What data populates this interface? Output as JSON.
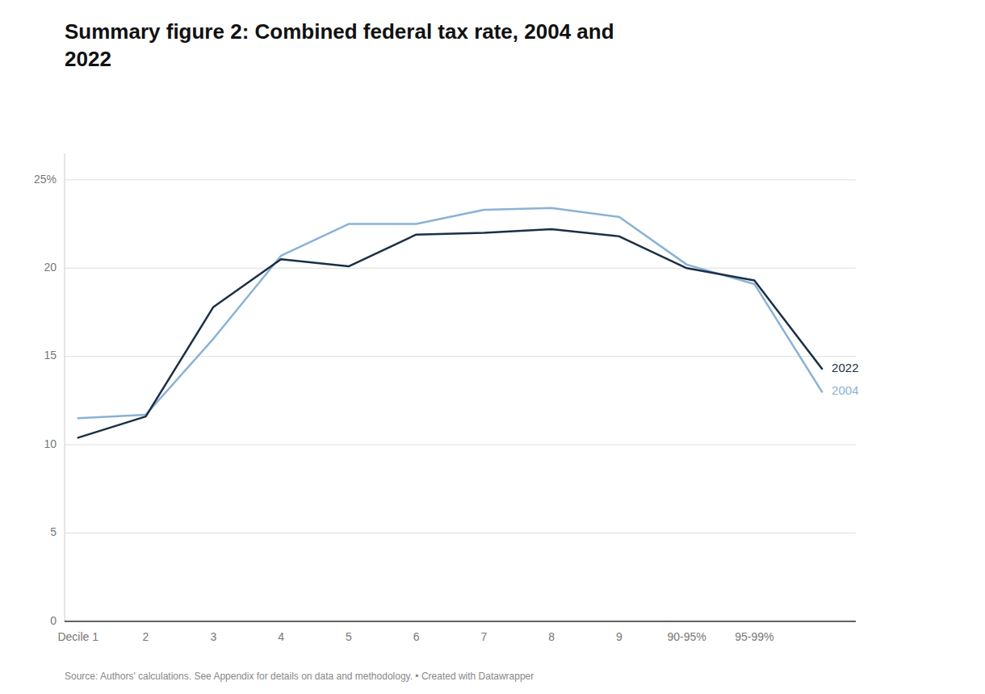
{
  "chart_data": {
    "type": "line",
    "title": "Summary figure 2: Combined federal tax rate, 2004 and\n2022",
    "categories": [
      "Decile 1",
      "2",
      "3",
      "4",
      "5",
      "6",
      "7",
      "8",
      "9",
      "90-95%",
      "95-99%",
      null
    ],
    "series": [
      {
        "name": "2004",
        "color": "#8ab2d5",
        "values": [
          11.5,
          11.7,
          16.0,
          20.7,
          22.5,
          22.5,
          23.3,
          23.4,
          22.9,
          20.2,
          19.1,
          13.0
        ]
      },
      {
        "name": "2022",
        "color": "#1b2f45",
        "values": [
          10.4,
          11.6,
          17.8,
          20.5,
          20.1,
          21.9,
          22.0,
          22.2,
          21.8,
          20.0,
          19.3,
          14.3
        ]
      }
    ],
    "ylim": [
      0,
      26.5
    ],
    "yticks": [
      0,
      5,
      10,
      15,
      20,
      {
        "value": 25,
        "label": "25%"
      }
    ],
    "grid": true,
    "annotations": [
      "Source: Authors' calculations. See Appendix for details on data and methodology.  •  Created with Datawrapper"
    ]
  }
}
